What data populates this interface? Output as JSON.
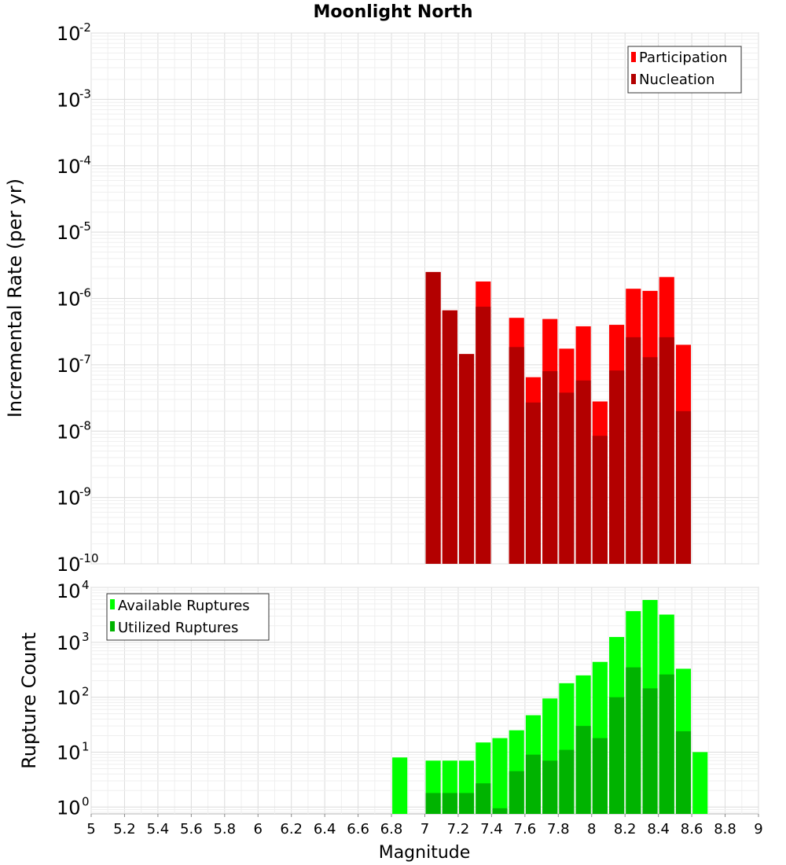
{
  "chart_data": [
    {
      "type": "bar",
      "title": "Moonlight North",
      "ylabel": "Incremental Rate (per yr)",
      "yscale": "log",
      "ylim": [
        1e-10,
        0.01
      ],
      "ytick_exponents": [
        -10,
        -9,
        -8,
        -7,
        -6,
        -5,
        -4,
        -3,
        -2
      ],
      "xlim": [
        5,
        9
      ],
      "bar_width": 0.09,
      "grid": true,
      "legend_position": "top-right",
      "series": [
        {
          "name": "Participation",
          "color": "#ff0000",
          "x": [
            7.05,
            7.15,
            7.25,
            7.35,
            7.55,
            7.65,
            7.75,
            7.85,
            7.95,
            8.05,
            8.15,
            8.25,
            8.35,
            8.45,
            8.55
          ],
          "values": [
            2.5e-06,
            6.6e-07,
            1.45e-07,
            1.8e-06,
            5.1e-07,
            6.5e-08,
            4.9e-07,
            1.75e-07,
            3.8e-07,
            2.8e-08,
            4e-07,
            1.4e-06,
            1.3e-06,
            2.1e-06,
            2e-07
          ]
        },
        {
          "name": "Nucleation",
          "color": "#b30000",
          "x": [
            7.05,
            7.15,
            7.25,
            7.35,
            7.55,
            7.65,
            7.75,
            7.85,
            7.95,
            8.05,
            8.15,
            8.25,
            8.35,
            8.45,
            8.55
          ],
          "values": [
            2.5e-06,
            6.6e-07,
            1.45e-07,
            7.5e-07,
            1.85e-07,
            2.7e-08,
            8e-08,
            3.8e-08,
            5.8e-08,
            8.5e-09,
            8.2e-08,
            2.6e-07,
            1.3e-07,
            2.6e-07,
            2e-08
          ]
        }
      ]
    },
    {
      "type": "bar",
      "ylabel": "Rupture Count",
      "xlabel": "Magnitude",
      "yscale": "log",
      "ylim": [
        0.75,
        10000
      ],
      "ytick_exponents": [
        0,
        1,
        2,
        3,
        4
      ],
      "xlim": [
        5,
        9
      ],
      "bar_width": 0.09,
      "xticks": [
        "5",
        "5.2",
        "5.4",
        "5.6",
        "5.8",
        "6",
        "6.2",
        "6.4",
        "6.6",
        "6.8",
        "7",
        "7.2",
        "7.4",
        "7.6",
        "7.8",
        "8",
        "8.2",
        "8.4",
        "8.6",
        "8.8",
        "9"
      ],
      "grid": true,
      "legend_position": "top-left",
      "series": [
        {
          "name": "Available Ruptures",
          "color": "#00ff00",
          "x": [
            6.85,
            7.05,
            7.15,
            7.25,
            7.35,
            7.45,
            7.55,
            7.65,
            7.75,
            7.85,
            7.95,
            8.05,
            8.15,
            8.25,
            8.35,
            8.45,
            8.55,
            8.65
          ],
          "values": [
            8,
            7,
            7,
            7,
            15,
            18,
            25,
            47,
            95,
            180,
            250,
            440,
            1250,
            3700,
            5900,
            3200,
            330,
            10
          ]
        },
        {
          "name": "Utilized Ruptures",
          "color": "#00b300",
          "x": [
            7.05,
            7.15,
            7.25,
            7.35,
            7.45,
            7.55,
            7.65,
            7.75,
            7.85,
            7.95,
            8.05,
            8.15,
            8.25,
            8.35,
            8.45,
            8.55
          ],
          "values": [
            1.8,
            1.8,
            1.8,
            2.7,
            0.95,
            4.5,
            9,
            7,
            11,
            30,
            18,
            100,
            350,
            145,
            260,
            24
          ]
        }
      ]
    }
  ]
}
